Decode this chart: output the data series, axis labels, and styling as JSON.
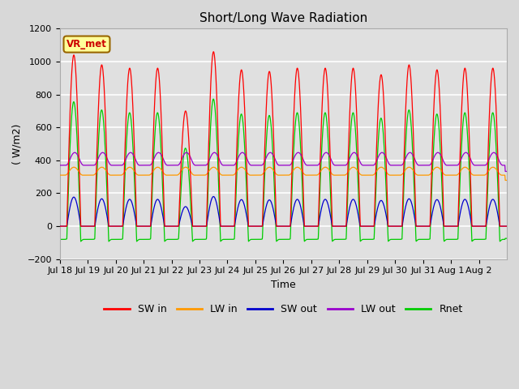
{
  "title": "Short/Long Wave Radiation",
  "xlabel": "Time",
  "ylabel": "( W/m2)",
  "ylim": [
    -200,
    1200
  ],
  "annotation_text": "VR_met",
  "annotation_color": "#cc0000",
  "annotation_bg": "#ffff99",
  "line_colors": {
    "SW in": "#ff0000",
    "LW in": "#ff9900",
    "SW out": "#0000cc",
    "LW out": "#9900cc",
    "Rnet": "#00cc00"
  },
  "n_days": 16,
  "xtick_labels": [
    "Jul 18",
    "Jul 19",
    "Jul 20",
    "Jul 21",
    "Jul 22",
    "Jul 23",
    "Jul 24",
    "Jul 25",
    "Jul 26",
    "Jul 27",
    "Jul 28",
    "Jul 29",
    "Jul 30",
    "Jul 31",
    "Aug 1",
    "Aug 2"
  ],
  "sw_in_peaks": [
    1040,
    980,
    960,
    960,
    700,
    1060,
    950,
    940,
    960,
    960,
    960,
    920,
    980,
    950,
    960,
    960
  ],
  "lw_in_night": 310,
  "lw_in_day_add": 50,
  "lw_out_night": 370,
  "lw_out_day_add": 80,
  "sw_out_scale": 0.17,
  "rnet_night": -80
}
